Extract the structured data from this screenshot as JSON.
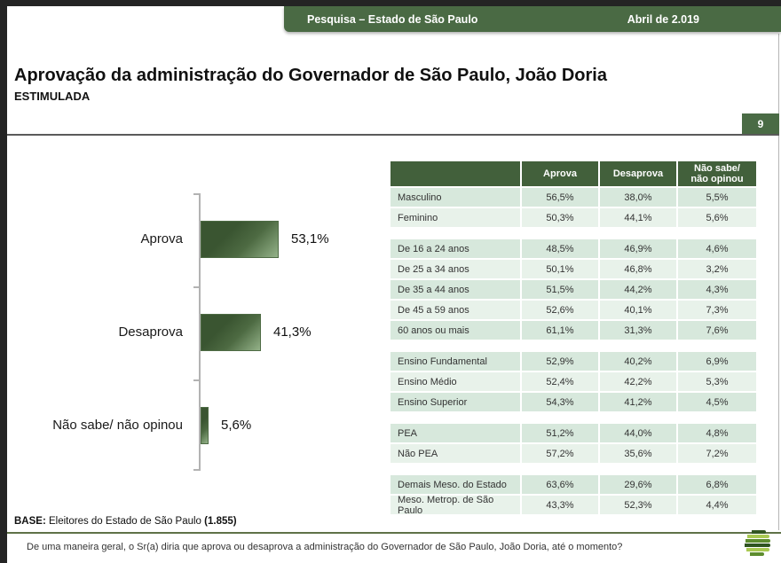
{
  "banner": {
    "title": "Pesquisa – Estado de São Paulo",
    "date": "Abril de 2.019"
  },
  "page": {
    "title": "Aprovação da administração do Governador de São Paulo, João Doria",
    "subtitle": "ESTIMULADA",
    "number": "9"
  },
  "chart_data": {
    "type": "bar",
    "orientation": "horizontal",
    "title": "Aprovação da administração do Governador de São Paulo, João Doria — ESTIMULADA",
    "categories": [
      "Aprova",
      "Desaprova",
      "Não sabe/ não opinou"
    ],
    "values": [
      53.1,
      41.3,
      5.6
    ],
    "value_labels": [
      "53,1%",
      "41,3%",
      "5,6%"
    ],
    "xlabel": "",
    "ylabel": "",
    "xlim": [
      0,
      100
    ],
    "grid": false,
    "legend": "none"
  },
  "base_note": {
    "prefix": "BASE:",
    "text": " Eleitores do Estado de São Paulo ",
    "count": "(1.855)"
  },
  "table": {
    "columns": [
      "Aprova",
      "Desaprova",
      "Não sabe/\nnão opinou"
    ],
    "groups": [
      {
        "rows": [
          {
            "label": "Masculino",
            "values": [
              "56,5%",
              "38,0%",
              "5,5%"
            ]
          },
          {
            "label": "Feminino",
            "values": [
              "50,3%",
              "44,1%",
              "5,6%"
            ]
          }
        ]
      },
      {
        "rows": [
          {
            "label": "De 16 a 24 anos",
            "values": [
              "48,5%",
              "46,9%",
              "4,6%"
            ]
          },
          {
            "label": "De 25 a 34 anos",
            "values": [
              "50,1%",
              "46,8%",
              "3,2%"
            ]
          },
          {
            "label": "De 35 a 44 anos",
            "values": [
              "51,5%",
              "44,2%",
              "4,3%"
            ]
          },
          {
            "label": "De 45 a 59 anos",
            "values": [
              "52,6%",
              "40,1%",
              "7,3%"
            ]
          },
          {
            "label": "60 anos ou mais",
            "values": [
              "61,1%",
              "31,3%",
              "7,6%"
            ]
          }
        ]
      },
      {
        "rows": [
          {
            "label": "Ensino Fundamental",
            "values": [
              "52,9%",
              "40,2%",
              "6,9%"
            ]
          },
          {
            "label": "Ensino Médio",
            "values": [
              "52,4%",
              "42,2%",
              "5,3%"
            ]
          },
          {
            "label": "Ensino Superior",
            "values": [
              "54,3%",
              "41,2%",
              "4,5%"
            ]
          }
        ]
      },
      {
        "rows": [
          {
            "label": "PEA",
            "values": [
              "51,2%",
              "44,0%",
              "4,8%"
            ]
          },
          {
            "label": "Não PEA",
            "values": [
              "57,2%",
              "35,6%",
              "7,2%"
            ]
          }
        ]
      },
      {
        "rows": [
          {
            "label": "Demais Meso. do Estado",
            "values": [
              "63,6%",
              "29,6%",
              "6,8%"
            ]
          },
          {
            "label": "Meso. Metrop. de São Paulo",
            "values": [
              "43,3%",
              "52,3%",
              "4,4%"
            ]
          }
        ]
      }
    ]
  },
  "footer": {
    "question": "De uma maneira geral, o Sr(a) diria que aprova ou desaprova a administração do Governador de São Paulo, João Doria, até o momento?"
  },
  "colors": {
    "frame_dark": "#242424",
    "banner_green": "#4a6a44",
    "table_header_green": "#42603b",
    "row_mint_dark": "#d7e8dc",
    "row_mint_light": "#e8f2ea",
    "bar_gradient_dark": "#3a5531",
    "bar_gradient_light": "#94b289",
    "footer_line_olive": "#5f7248"
  }
}
